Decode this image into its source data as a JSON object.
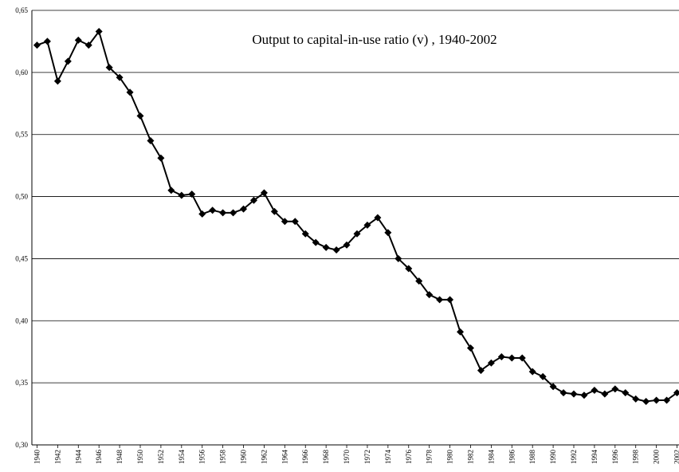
{
  "chart_data": {
    "type": "line",
    "title": "Output to capital-in-use ratio (v) , 1940-2002",
    "x": [
      1940,
      1941,
      1942,
      1943,
      1944,
      1945,
      1946,
      1947,
      1948,
      1949,
      1950,
      1951,
      1952,
      1953,
      1954,
      1955,
      1956,
      1957,
      1958,
      1959,
      1960,
      1961,
      1962,
      1963,
      1964,
      1965,
      1966,
      1967,
      1968,
      1969,
      1970,
      1971,
      1972,
      1973,
      1974,
      1975,
      1976,
      1977,
      1978,
      1979,
      1980,
      1981,
      1982,
      1983,
      1984,
      1985,
      1986,
      1987,
      1988,
      1989,
      1990,
      1991,
      1992,
      1993,
      1994,
      1995,
      1996,
      1997,
      1998,
      1999,
      2000,
      2001,
      2002
    ],
    "series": [
      {
        "name": "v",
        "color": "#000000",
        "values": [
          0.622,
          0.625,
          0.593,
          0.609,
          0.626,
          0.622,
          0.633,
          0.604,
          0.596,
          0.584,
          0.565,
          0.545,
          0.531,
          0.505,
          0.501,
          0.502,
          0.486,
          0.489,
          0.487,
          0.487,
          0.49,
          0.497,
          0.503,
          0.488,
          0.48,
          0.48,
          0.47,
          0.463,
          0.459,
          0.457,
          0.461,
          0.47,
          0.477,
          0.483,
          0.471,
          0.45,
          0.442,
          0.432,
          0.421,
          0.417,
          0.417,
          0.391,
          0.378,
          0.36,
          0.366,
          0.371,
          0.37,
          0.37,
          0.359,
          0.355,
          0.347,
          0.342,
          0.341,
          0.34,
          0.344,
          0.341,
          0.345,
          0.342,
          0.337,
          0.335,
          0.336,
          0.336,
          0.342
        ]
      }
    ],
    "xlim": [
      1939.5,
      2002.5
    ],
    "xticks": [
      1940,
      1942,
      1944,
      1946,
      1948,
      1950,
      1952,
      1954,
      1956,
      1958,
      1960,
      1962,
      1964,
      1966,
      1968,
      1970,
      1972,
      1974,
      1976,
      1978,
      1980,
      1982,
      1984,
      1986,
      1988,
      1990,
      1992,
      1994,
      1996,
      1998,
      2000,
      2002
    ],
    "ylim": [
      0.3,
      0.65
    ],
    "yticks": [
      {
        "value": 0.3,
        "label": "0,30"
      },
      {
        "value": 0.35,
        "label": "0,35"
      },
      {
        "value": 0.4,
        "label": "0,40"
      },
      {
        "value": 0.45,
        "label": "0,45"
      },
      {
        "value": 0.5,
        "label": "0,50"
      },
      {
        "value": 0.55,
        "label": "0,55"
      },
      {
        "value": 0.6,
        "label": "0,60"
      },
      {
        "value": 0.65,
        "label": "0,65"
      }
    ],
    "grid": true
  }
}
